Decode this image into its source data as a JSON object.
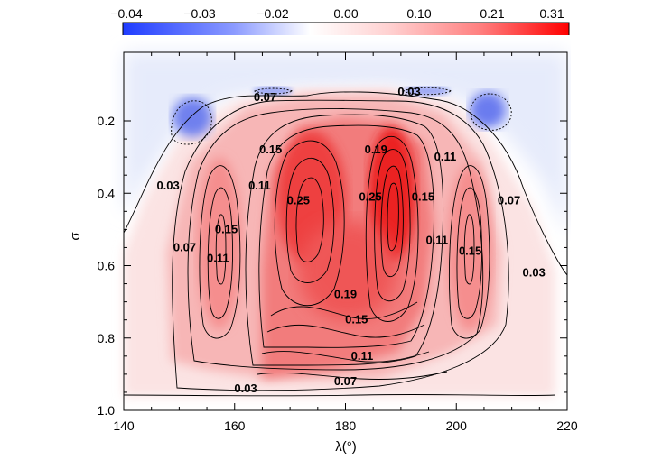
{
  "chart_data": {
    "type": "contour",
    "xlabel": "λ(°)",
    "ylabel": "σ",
    "xlim": [
      140,
      220
    ],
    "ylim": [
      1.0,
      0.0
    ],
    "xticks": [
      "140",
      "160",
      "180",
      "200",
      "220"
    ],
    "yticks": [
      "0.2",
      "0.4",
      "0.6",
      "0.8",
      "1.0"
    ],
    "colorbar": {
      "ticks": [
        "−0.04",
        "−0.03",
        "−0.02",
        "0.00",
        "0.10",
        "0.21",
        "0.31"
      ],
      "min_color": "#1f3cff",
      "zero_color": "#ffffff",
      "max_color": "#ff1a1a"
    },
    "features": [
      {
        "name": "central-max-west",
        "x": 174,
        "y": 0.42,
        "value": 0.27
      },
      {
        "name": "central-max-east",
        "x": 188,
        "y": 0.42,
        "value": 0.31
      },
      {
        "name": "west-max",
        "x": 157,
        "y": 0.52,
        "value": 0.17
      },
      {
        "name": "east-max",
        "x": 204,
        "y": 0.52,
        "value": 0.17
      },
      {
        "name": "west-min",
        "x": 155,
        "y": 0.19,
        "value": -0.04
      },
      {
        "name": "east-min",
        "x": 205,
        "y": 0.18,
        "value": -0.04
      }
    ],
    "contour_labels": [
      {
        "text": "0.07",
        "x": 165.5,
        "y": 0.135
      },
      {
        "text": "0.03",
        "x": 191.5,
        "y": 0.12
      },
      {
        "text": "0.15",
        "x": 166.5,
        "y": 0.28
      },
      {
        "text": "0.19",
        "x": 185.5,
        "y": 0.28
      },
      {
        "text": "0.11",
        "x": 198,
        "y": 0.3
      },
      {
        "text": "0.03",
        "x": 148,
        "y": 0.38
      },
      {
        "text": "0.11",
        "x": 164.5,
        "y": 0.38
      },
      {
        "text": "0.25",
        "x": 171.5,
        "y": 0.42
      },
      {
        "text": "0.25",
        "x": 184.5,
        "y": 0.41
      },
      {
        "text": "0.15",
        "x": 194,
        "y": 0.41
      },
      {
        "text": "0.07",
        "x": 209.5,
        "y": 0.42
      },
      {
        "text": "0.15",
        "x": 158.5,
        "y": 0.5
      },
      {
        "text": "0.07",
        "x": 151,
        "y": 0.55
      },
      {
        "text": "0.11",
        "x": 157,
        "y": 0.58
      },
      {
        "text": "0.11",
        "x": 196.5,
        "y": 0.53
      },
      {
        "text": "0.15",
        "x": 202.5,
        "y": 0.56
      },
      {
        "text": "0.03",
        "x": 214,
        "y": 0.62
      },
      {
        "text": "0.19",
        "x": 180,
        "y": 0.68
      },
      {
        "text": "0.15",
        "x": 182,
        "y": 0.75
      },
      {
        "text": "0.11",
        "x": 183,
        "y": 0.85
      },
      {
        "text": "0.07",
        "x": 180,
        "y": 0.92
      },
      {
        "text": "0.03",
        "x": 162,
        "y": 0.94
      }
    ]
  }
}
